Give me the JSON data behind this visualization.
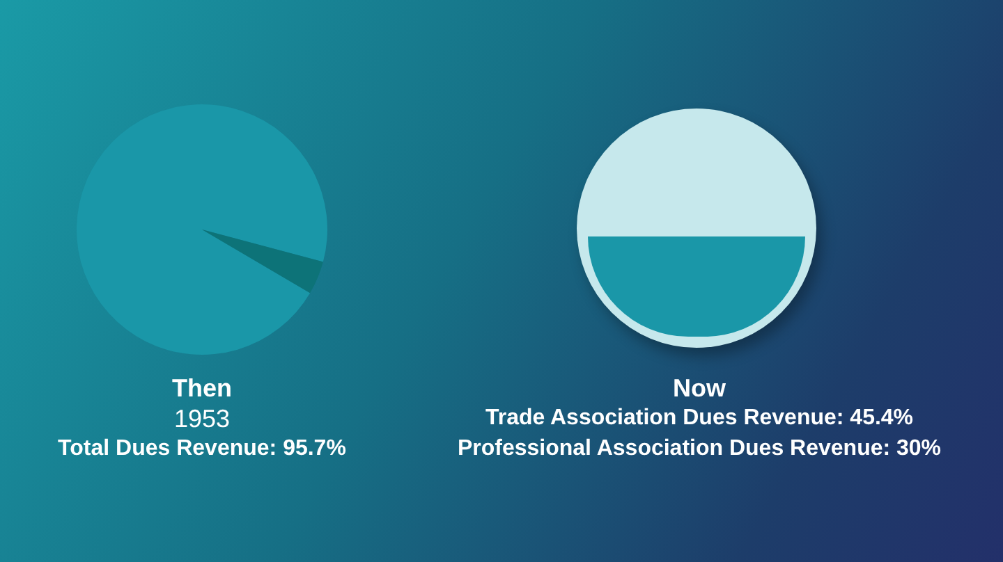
{
  "chart_data": [
    {
      "type": "pie",
      "title": "Then",
      "subtitle": "1953",
      "annotations": [
        "Total Dues Revenue: 95.7%"
      ],
      "categories": [
        null,
        null
      ],
      "values": [
        95.7,
        4.3
      ],
      "colors": [
        "#1a97a8",
        "#0d7378"
      ]
    },
    {
      "type": "other",
      "title": "Now",
      "annotations": [
        "Trade Association Dues Revenue: 45.4%",
        "Professional Association Dues Revenue: 30%"
      ]
    }
  ]
}
